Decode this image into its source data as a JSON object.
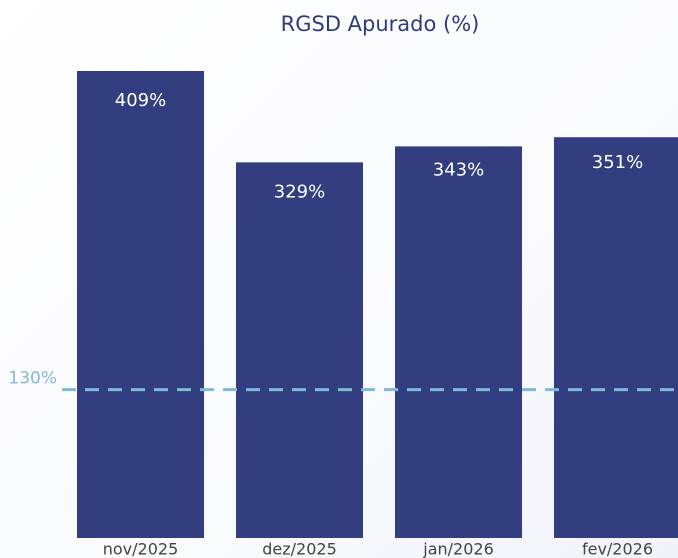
{
  "chart_data": {
    "type": "bar",
    "title": "RGSD Apurado (%)",
    "categories": [
      "nov/2025",
      "dez/2025",
      "jan/2026",
      "fev/2026"
    ],
    "values": [
      409,
      329,
      343,
      351
    ],
    "value_labels": [
      "409%",
      "329%",
      "343%",
      "351%"
    ],
    "color": "#323e80",
    "reference_line": {
      "value": 130,
      "label": "130%",
      "color": "#7fbad8"
    }
  }
}
